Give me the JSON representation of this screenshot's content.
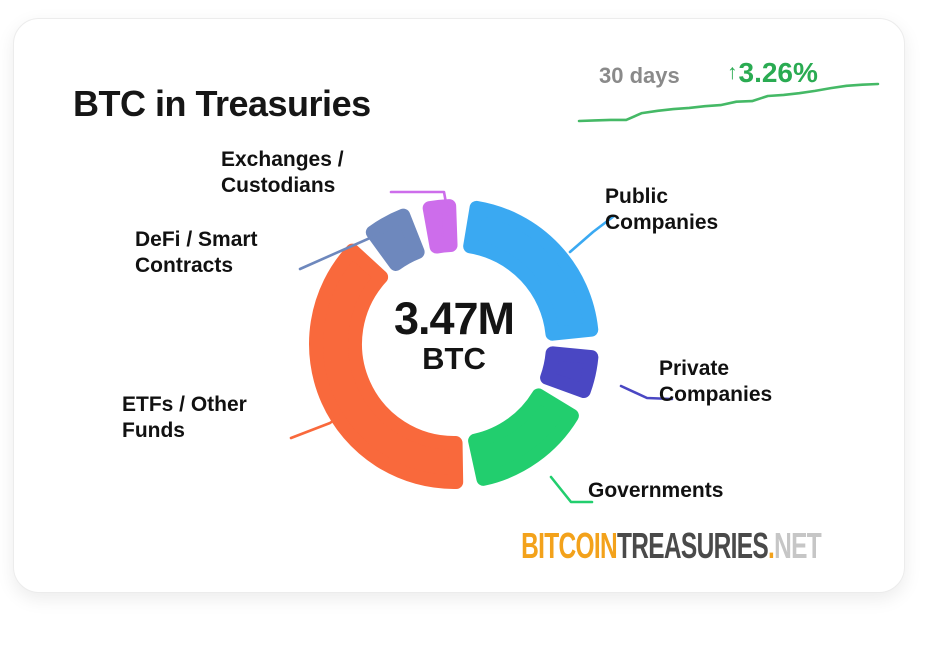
{
  "header": {
    "title": "BTC in Treasuries"
  },
  "trend": {
    "period_label": "30 days",
    "arrow_glyph": "↑",
    "change_label": "3.26%",
    "text_color": "#2aab52",
    "line_color": "#45b966"
  },
  "chart_data": {
    "type": "pie",
    "variant": "donut",
    "title": "BTC in Treasuries",
    "center_label": {
      "value": "3.47M",
      "unit": "BTC"
    },
    "total_btc_millions": 3.47,
    "segments": [
      {
        "label": "Public Companies",
        "share_pct": 24.5,
        "color": "#3aa9f2"
      },
      {
        "label": "Private Companies",
        "share_pct": 6.4,
        "color": "#4a47c3"
      },
      {
        "label": "Governments",
        "share_pct": 16.0,
        "color": "#22ce6e"
      },
      {
        "label": "ETFs / Other Funds",
        "share_pct": 42.2,
        "color": "#f9693c"
      },
      {
        "label": "DeFi / Smart Contracts",
        "share_pct": 6.4,
        "color": "#6e88bd"
      },
      {
        "label": "Exchanges / Custodians",
        "share_pct": 4.5,
        "color": "#cd6deb"
      }
    ],
    "donut": {
      "start_angle_deg": 6,
      "gap_deg": 4.6,
      "outer_radius": 145,
      "inner_radius": 92
    },
    "legend_position": "callouts",
    "trend": {
      "period": "30 days",
      "change_pct": 3.26,
      "direction": "up"
    },
    "sparkline_values": [
      0,
      0.05,
      0.1,
      0.1,
      0.7,
      0.9,
      1.05,
      1.15,
      1.3,
      1.4,
      1.7,
      1.75,
      2.2,
      2.3,
      2.45,
      2.65,
      2.9,
      3.1,
      3.2,
      3.26
    ]
  },
  "callouts": {
    "exchanges": {
      "line1": "Exchanges /",
      "line2": "Custodians"
    },
    "defi": {
      "line1": "DeFi / Smart",
      "line2": "Contracts"
    },
    "public": {
      "line1": "Public",
      "line2": "Companies"
    },
    "private": {
      "line1": "Private",
      "line2": "Companies"
    },
    "governments": {
      "line1": "Governments"
    },
    "etfs": {
      "line1": "ETFs / Other",
      "line2": "Funds"
    }
  },
  "footer": {
    "brand_bitcoin": "BITCOIN",
    "brand_treasuries": "TREASURIES",
    "brand_dot": ".",
    "brand_net": "NET"
  }
}
